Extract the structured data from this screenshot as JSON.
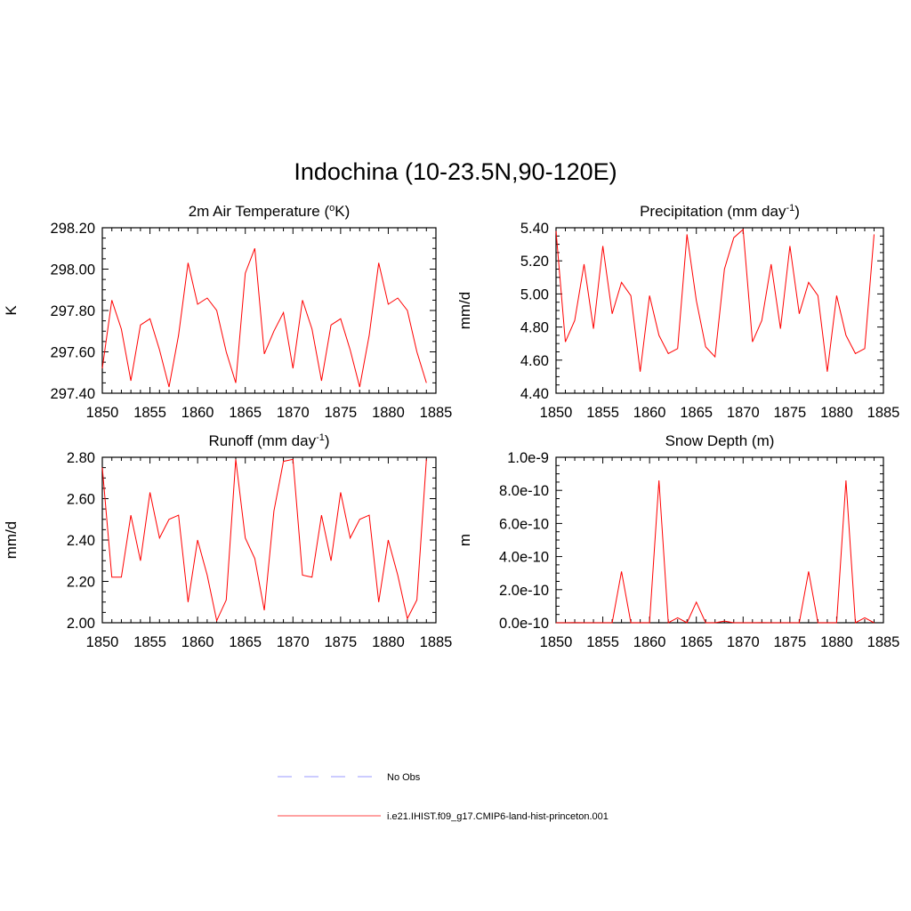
{
  "figure": {
    "title": "Indochina (10-23.5N,90-120E)",
    "legend": [
      {
        "label": "No Obs",
        "color": "#9999ff",
        "dash": "dashed"
      },
      {
        "label": "i.e21.IHIST.f09_g17.CMIP6-land-hist-princeton.001",
        "color": "#ff4444",
        "dash": "solid"
      }
    ],
    "series_color": "#ff0000"
  },
  "chart_data": [
    {
      "type": "line",
      "title": "2m Air Temperature (",
      "title_sup": "o",
      "title_after": "K)",
      "ylabel": "K",
      "xlim": [
        1850,
        1885
      ],
      "ylim": [
        297.4,
        298.2
      ],
      "xticks": [
        1850,
        1855,
        1860,
        1865,
        1870,
        1875,
        1880,
        1885
      ],
      "xtick_labels": [
        "1850",
        "1855",
        "1860",
        "1865",
        "1870",
        "1875",
        "1880",
        "1885"
      ],
      "yticks": [
        297.4,
        297.6,
        297.8,
        298.0,
        298.2
      ],
      "ytick_labels": [
        "297.40",
        "297.60",
        "297.80",
        "298.00",
        "298.20"
      ],
      "x": [
        1850,
        1851,
        1852,
        1853,
        1854,
        1855,
        1856,
        1857,
        1858,
        1859,
        1860,
        1861,
        1862,
        1863,
        1864,
        1865,
        1866,
        1867,
        1868,
        1869,
        1870,
        1871,
        1872,
        1873,
        1874,
        1875,
        1876,
        1877,
        1878,
        1879,
        1880,
        1881,
        1882,
        1883,
        1884
      ],
      "y": [
        297.52,
        297.85,
        297.71,
        297.46,
        297.73,
        297.76,
        297.61,
        297.43,
        297.68,
        298.03,
        297.83,
        297.86,
        297.8,
        297.6,
        297.45,
        297.98,
        298.1,
        297.59,
        297.7,
        297.79,
        297.52,
        297.85,
        297.71,
        297.46,
        297.73,
        297.76,
        297.61,
        297.43,
        297.68,
        298.03,
        297.83,
        297.86,
        297.8,
        297.6,
        297.45
      ]
    },
    {
      "type": "line",
      "title": "Precipitation (mm day",
      "title_sup": "-1",
      "title_after": ")",
      "ylabel": "mm/d",
      "xlim": [
        1850,
        1885
      ],
      "ylim": [
        4.4,
        5.4
      ],
      "xticks": [
        1850,
        1855,
        1860,
        1865,
        1870,
        1875,
        1880,
        1885
      ],
      "xtick_labels": [
        "1850",
        "1855",
        "1860",
        "1865",
        "1870",
        "1875",
        "1880",
        "1885"
      ],
      "yticks": [
        4.4,
        4.6,
        4.8,
        5.0,
        5.2,
        5.4
      ],
      "ytick_labels": [
        "4.40",
        "4.60",
        "4.80",
        "5.00",
        "5.20",
        "5.40"
      ],
      "x": [
        1850,
        1851,
        1852,
        1853,
        1854,
        1855,
        1856,
        1857,
        1858,
        1859,
        1860,
        1861,
        1862,
        1863,
        1864,
        1865,
        1866,
        1867,
        1868,
        1869,
        1870,
        1871,
        1872,
        1873,
        1874,
        1875,
        1876,
        1877,
        1878,
        1879,
        1880,
        1881,
        1882,
        1883,
        1884
      ],
      "y": [
        5.38,
        4.71,
        4.84,
        5.18,
        4.79,
        5.29,
        4.88,
        5.07,
        4.99,
        4.53,
        4.99,
        4.75,
        4.64,
        4.67,
        5.36,
        4.96,
        4.68,
        4.62,
        5.15,
        5.34,
        5.39,
        4.71,
        4.84,
        5.18,
        4.79,
        5.29,
        4.88,
        5.07,
        4.99,
        4.53,
        4.99,
        4.75,
        4.64,
        4.67,
        5.36
      ]
    },
    {
      "type": "line",
      "title": "Runoff (mm day",
      "title_sup": "-1",
      "title_after": ")",
      "ylabel": "mm/d",
      "xlim": [
        1850,
        1885
      ],
      "ylim": [
        2.0,
        2.8
      ],
      "xticks": [
        1850,
        1855,
        1860,
        1865,
        1870,
        1875,
        1880,
        1885
      ],
      "xtick_labels": [
        "1850",
        "1855",
        "1860",
        "1865",
        "1870",
        "1875",
        "1880",
        "1885"
      ],
      "yticks": [
        2.0,
        2.2,
        2.4,
        2.6,
        2.8
      ],
      "ytick_labels": [
        "2.00",
        "2.20",
        "2.40",
        "2.60",
        "2.80"
      ],
      "x": [
        1850,
        1851,
        1852,
        1853,
        1854,
        1855,
        1856,
        1857,
        1858,
        1859,
        1860,
        1861,
        1862,
        1863,
        1864,
        1865,
        1866,
        1867,
        1868,
        1869,
        1870,
        1871,
        1872,
        1873,
        1874,
        1875,
        1876,
        1877,
        1878,
        1879,
        1880,
        1881,
        1882,
        1883,
        1884
      ],
      "y": [
        2.75,
        2.22,
        2.22,
        2.52,
        2.3,
        2.63,
        2.41,
        2.5,
        2.52,
        2.1,
        2.4,
        2.23,
        2.01,
        2.11,
        2.79,
        2.41,
        2.31,
        2.06,
        2.54,
        2.78,
        2.79,
        2.23,
        2.22,
        2.52,
        2.3,
        2.63,
        2.41,
        2.5,
        2.52,
        2.1,
        2.4,
        2.23,
        2.02,
        2.11,
        2.79
      ]
    },
    {
      "type": "line",
      "title": "Snow Depth (m)",
      "title_sup": "",
      "title_after": "",
      "ylabel": "m",
      "xlim": [
        1850,
        1885
      ],
      "ylim": [
        0,
        1e-09
      ],
      "xticks": [
        1850,
        1855,
        1860,
        1865,
        1870,
        1875,
        1880,
        1885
      ],
      "xtick_labels": [
        "1850",
        "1855",
        "1860",
        "1865",
        "1870",
        "1875",
        "1880",
        "1885"
      ],
      "yticks": [
        0,
        2e-10,
        4e-10,
        6e-10,
        8e-10,
        1e-09
      ],
      "ytick_labels": [
        "0.0e-10",
        "2.0e-10",
        "4.0e-10",
        "6.0e-10",
        "8.0e-10",
        "1.0e-9"
      ],
      "x": [
        1850,
        1851,
        1852,
        1853,
        1854,
        1855,
        1856,
        1857,
        1858,
        1859,
        1860,
        1861,
        1862,
        1863,
        1864,
        1865,
        1866,
        1867,
        1868,
        1869,
        1870,
        1871,
        1872,
        1873,
        1874,
        1875,
        1876,
        1877,
        1878,
        1879,
        1880,
        1881,
        1882,
        1883,
        1884
      ],
      "y": [
        0,
        0,
        5e-13,
        0,
        0,
        0,
        0,
        3.1e-10,
        0,
        0,
        0,
        8.6e-10,
        0,
        3e-11,
        0,
        1.25e-10,
        0,
        0,
        1e-11,
        0,
        0,
        0,
        5e-13,
        0,
        0,
        0,
        0,
        3.1e-10,
        0,
        0,
        0,
        8.6e-10,
        0,
        3e-11,
        0
      ]
    }
  ]
}
